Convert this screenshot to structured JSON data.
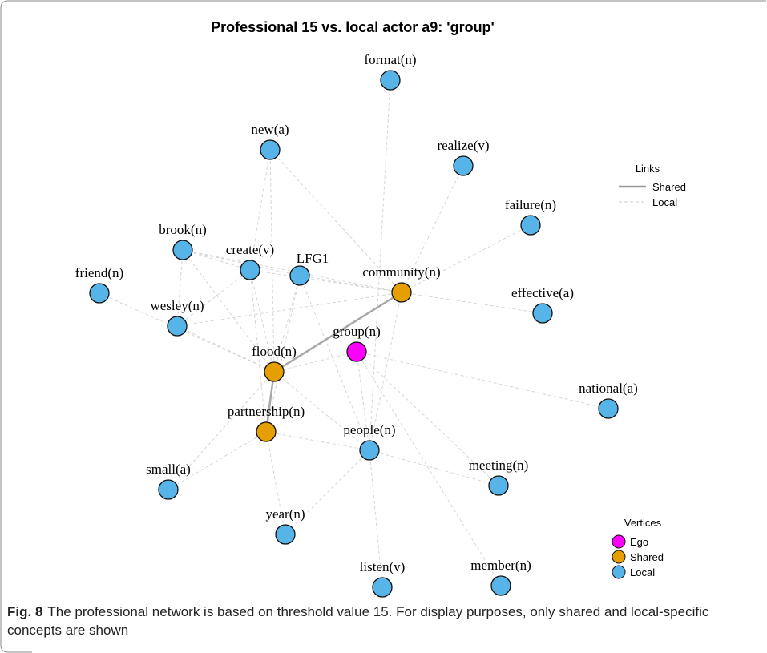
{
  "figure": {
    "title": "Professional 15 vs. local actor a9: 'group'",
    "nodes": [
      {
        "label": "format(n)",
        "color": "#56b4e9"
      },
      {
        "label": "new(a)",
        "color": "#56b4e9"
      },
      {
        "label": "realize(v)",
        "color": "#56b4e9"
      },
      {
        "label": "failure(n)",
        "color": "#56b4e9"
      },
      {
        "label": "brook(n)",
        "color": "#56b4e9"
      },
      {
        "label": "create(v)",
        "color": "#56b4e9"
      },
      {
        "label": "LFG1",
        "color": "#56b4e9"
      },
      {
        "label": "community(n)",
        "color": "#e69f00"
      },
      {
        "label": "friend(n)",
        "color": "#56b4e9"
      },
      {
        "label": "effective(a)",
        "color": "#56b4e9"
      },
      {
        "label": "wesley(n)",
        "color": "#56b4e9"
      },
      {
        "label": "group(n)",
        "color": "#ff00ff"
      },
      {
        "label": "flood(n)",
        "color": "#e69f00"
      },
      {
        "label": "national(a)",
        "color": "#56b4e9"
      },
      {
        "label": "partnership(n)",
        "color": "#e69f00"
      },
      {
        "label": "people(n)",
        "color": "#56b4e9"
      },
      {
        "label": "small(a)",
        "color": "#56b4e9"
      },
      {
        "label": "meeting(n)",
        "color": "#56b4e9"
      },
      {
        "label": "year(n)",
        "color": "#56b4e9"
      },
      {
        "label": "listen(v)",
        "color": "#56b4e9"
      },
      {
        "label": "member(n)",
        "color": "#56b4e9"
      }
    ],
    "links_legend": {
      "title": "Links",
      "items": [
        "Shared",
        "Local"
      ]
    },
    "vertices_legend": {
      "title": "Vertices",
      "items": [
        {
          "label": "Ego",
          "color": "#ff00ff"
        },
        {
          "label": "Shared",
          "color": "#e69f00"
        },
        {
          "label": "Local",
          "color": "#56b4e9"
        }
      ]
    },
    "caption": {
      "label": "Fig. 8",
      "text": "The professional network is based on threshold value 15. For display purposes, only shared and local-specific concepts are shown"
    }
  }
}
